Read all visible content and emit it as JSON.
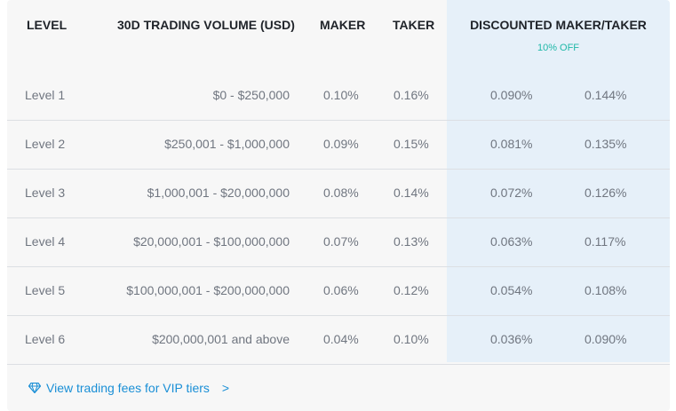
{
  "headers": {
    "level": "LEVEL",
    "volume": "30D TRADING VOLUME (USD)",
    "maker": "MAKER",
    "taker": "TAKER",
    "discounted": "DISCOUNTED MAKER/TAKER",
    "discount_note": "10% OFF"
  },
  "rows": [
    {
      "level": "Level 1",
      "volume": "$0 - $250,000",
      "maker": "0.10%",
      "taker": "0.16%",
      "disc_maker": "0.090%",
      "disc_taker": "0.144%"
    },
    {
      "level": "Level 2",
      "volume": "$250,001 - $1,000,000",
      "maker": "0.09%",
      "taker": "0.15%",
      "disc_maker": "0.081%",
      "disc_taker": "0.135%"
    },
    {
      "level": "Level 3",
      "volume": "$1,000,001 - $20,000,000",
      "maker": "0.08%",
      "taker": "0.14%",
      "disc_maker": "0.072%",
      "disc_taker": "0.126%"
    },
    {
      "level": "Level 4",
      "volume": "$20,000,001 - $100,000,000",
      "maker": "0.07%",
      "taker": "0.13%",
      "disc_maker": "0.063%",
      "disc_taker": "0.117%"
    },
    {
      "level": "Level 5",
      "volume": "$100,000,001 - $200,000,000",
      "maker": "0.06%",
      "taker": "0.12%",
      "disc_maker": "0.054%",
      "disc_taker": "0.108%"
    },
    {
      "level": "Level 6",
      "volume": "$200,000,001 and above",
      "maker": "0.04%",
      "taker": "0.10%",
      "disc_maker": "0.036%",
      "disc_taker": "0.090%"
    }
  ],
  "footer": {
    "link_label": "View trading fees for VIP tiers",
    "chevron": ">",
    "icon": "diamond-icon"
  },
  "colors": {
    "highlight_bg": "#e6f0f9",
    "discount_accent": "#1fb8a8",
    "link": "#1a8fd6"
  }
}
